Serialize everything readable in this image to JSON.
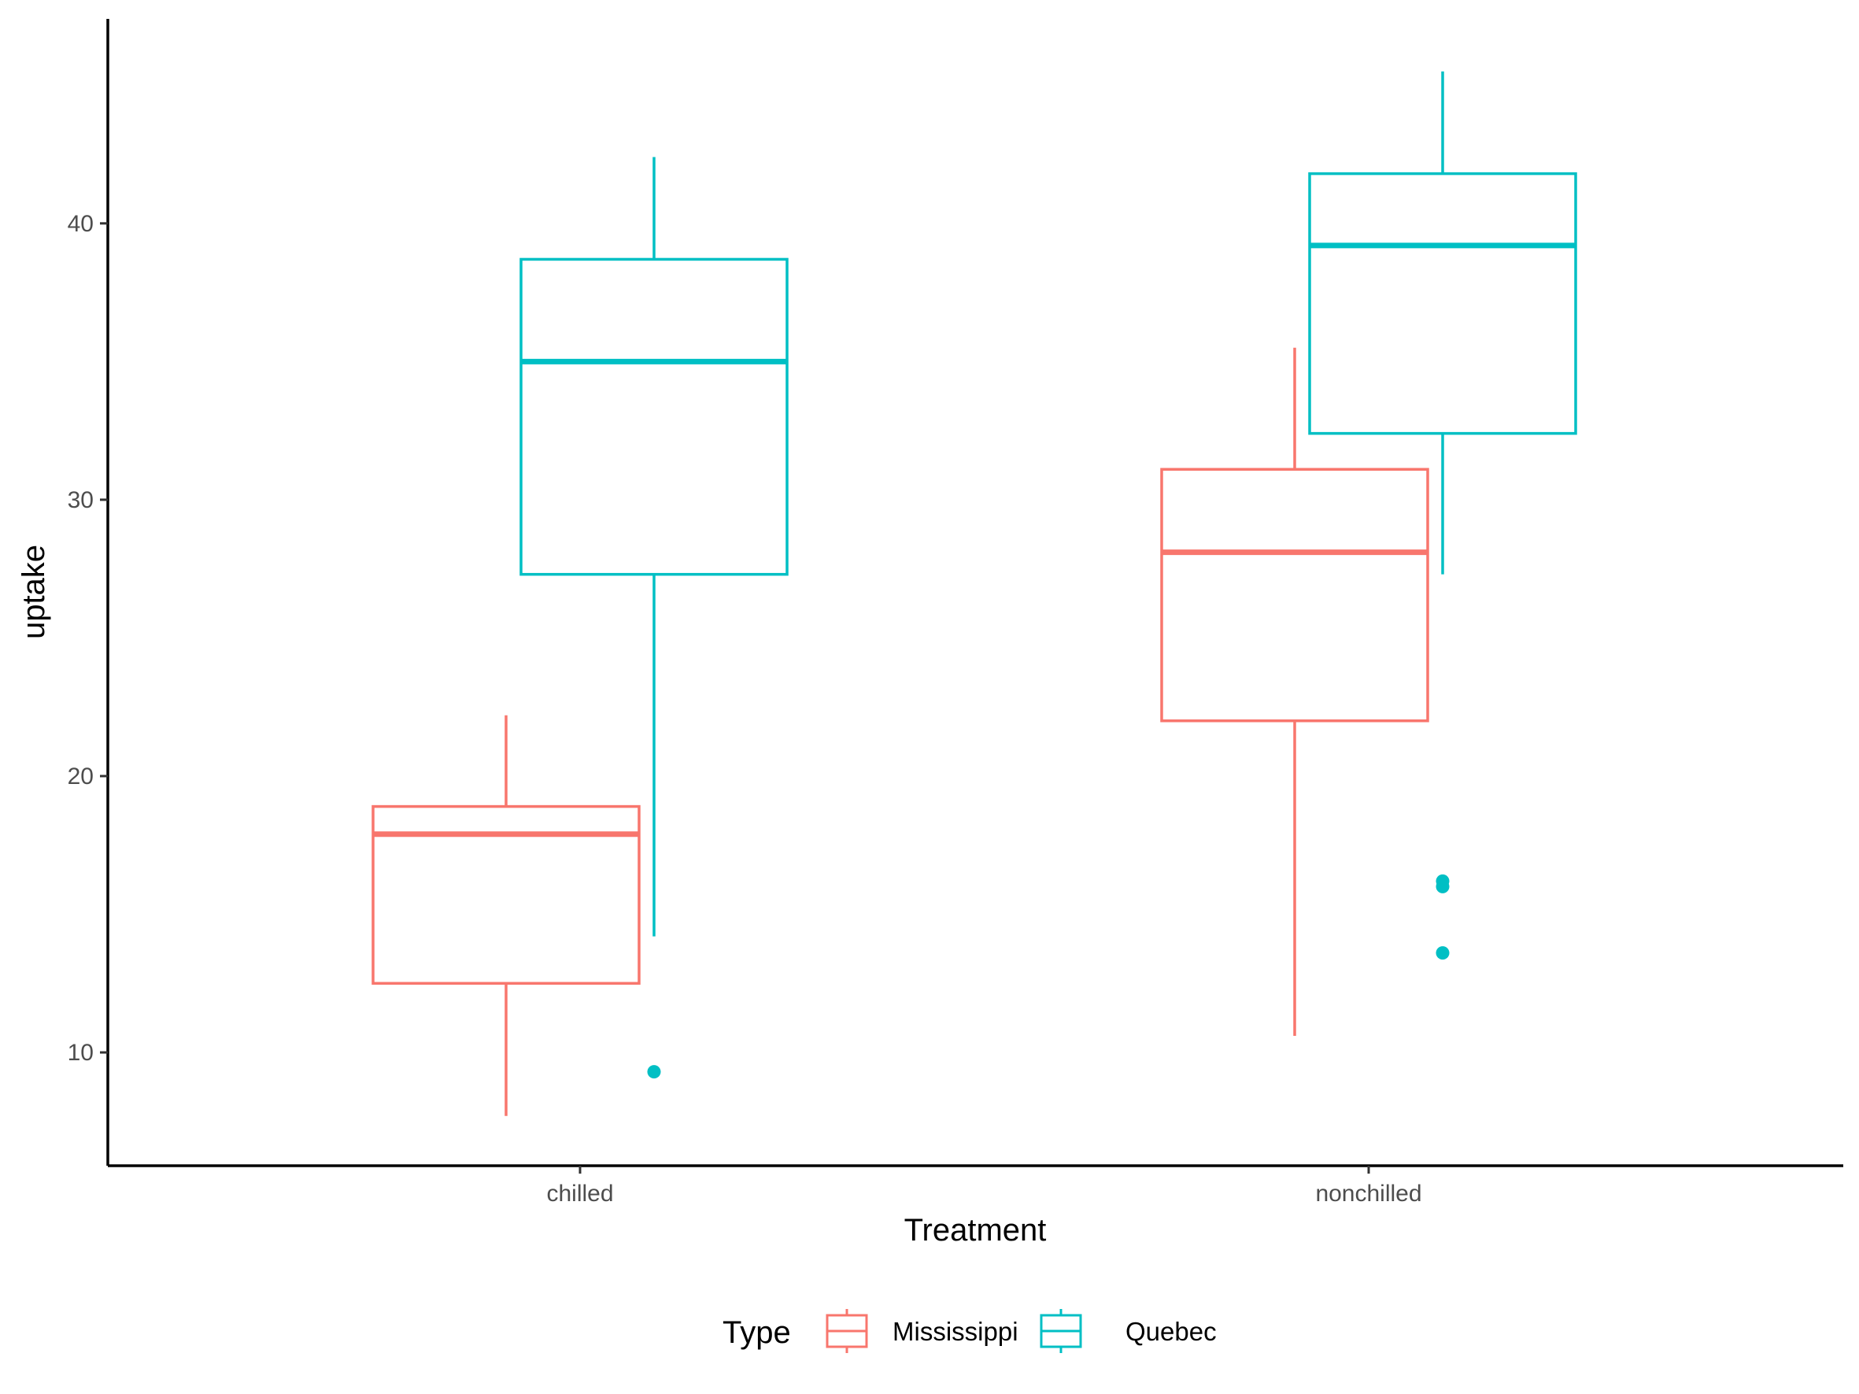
{
  "chart_data": {
    "type": "box",
    "xlabel": "Treatment",
    "ylabel": "uptake",
    "categories": [
      "chilled",
      "nonchilled"
    ],
    "y_ticks": [
      10,
      20,
      30,
      40
    ],
    "ylim": [
      5.9,
      47.4
    ],
    "grid": false,
    "legend": {
      "title": "Type",
      "position": "bottom",
      "entries": [
        "Mississippi",
        "Quebec"
      ]
    },
    "series": [
      {
        "name": "Mississippi",
        "color": "#F8766D",
        "boxes": [
          {
            "category": "chilled",
            "whisker_low": 7.7,
            "q1": 12.5,
            "median": 17.9,
            "q3": 18.9,
            "whisker_high": 22.2,
            "outliers": []
          },
          {
            "category": "nonchilled",
            "whisker_low": 10.6,
            "q1": 22.0,
            "median": 28.1,
            "q3": 31.1,
            "whisker_high": 35.5,
            "outliers": []
          }
        ]
      },
      {
        "name": "Quebec",
        "color": "#00BFC4",
        "boxes": [
          {
            "category": "chilled",
            "whisker_low": 14.2,
            "q1": 27.3,
            "median": 35.0,
            "q3": 38.7,
            "whisker_high": 42.4,
            "outliers": [
              9.3
            ]
          },
          {
            "category": "nonchilled",
            "whisker_low": 27.3,
            "q1": 32.4,
            "median": 39.2,
            "q3": 41.8,
            "whisker_high": 45.5,
            "outliers": [
              16.2,
              16.0,
              13.6
            ]
          }
        ]
      }
    ]
  }
}
